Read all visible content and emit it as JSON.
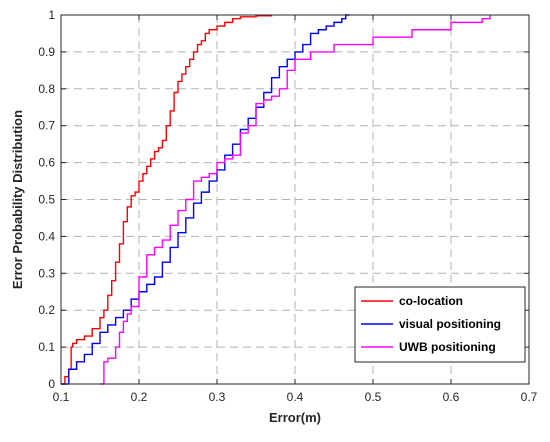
{
  "chart_data": {
    "type": "line",
    "title": "",
    "xlabel": "Error(m)",
    "ylabel": "Error Probability Distribution",
    "xlim": [
      0.1,
      0.7
    ],
    "ylim": [
      0,
      1
    ],
    "xticks": [
      "0.1",
      "0.2",
      "0.3",
      "0.4",
      "0.5",
      "0.6",
      "0.7"
    ],
    "yticks": [
      "0",
      "0.1",
      "0.2",
      "0.3",
      "0.4",
      "0.5",
      "0.6",
      "0.7",
      "0.8",
      "0.9",
      "1"
    ],
    "grid": true,
    "step": true,
    "legend_position": "bottom-right",
    "series": [
      {
        "name": "co-location",
        "color": "#ff0000",
        "x": [
          0.1,
          0.105,
          0.11,
          0.113,
          0.115,
          0.12,
          0.13,
          0.14,
          0.15,
          0.155,
          0.16,
          0.165,
          0.17,
          0.175,
          0.18,
          0.185,
          0.19,
          0.195,
          0.2,
          0.205,
          0.21,
          0.215,
          0.22,
          0.225,
          0.23,
          0.235,
          0.24,
          0.245,
          0.25,
          0.255,
          0.26,
          0.265,
          0.27,
          0.275,
          0.28,
          0.285,
          0.29,
          0.3,
          0.31,
          0.32,
          0.33,
          0.35,
          0.37
        ],
        "y": [
          0.0,
          0.02,
          0.04,
          0.1,
          0.11,
          0.12,
          0.13,
          0.15,
          0.18,
          0.2,
          0.24,
          0.28,
          0.33,
          0.38,
          0.44,
          0.48,
          0.51,
          0.52,
          0.55,
          0.57,
          0.59,
          0.61,
          0.63,
          0.64,
          0.66,
          0.7,
          0.74,
          0.79,
          0.82,
          0.84,
          0.86,
          0.88,
          0.9,
          0.92,
          0.93,
          0.95,
          0.96,
          0.97,
          0.98,
          0.99,
          0.995,
          0.998,
          1.0
        ]
      },
      {
        "name": "visual positioning",
        "color": "#0000ff",
        "x": [
          0.1,
          0.11,
          0.12,
          0.13,
          0.14,
          0.15,
          0.16,
          0.17,
          0.18,
          0.19,
          0.2,
          0.21,
          0.22,
          0.23,
          0.24,
          0.25,
          0.26,
          0.27,
          0.28,
          0.29,
          0.3,
          0.31,
          0.32,
          0.33,
          0.34,
          0.35,
          0.36,
          0.37,
          0.38,
          0.39,
          0.4,
          0.41,
          0.42,
          0.43,
          0.44,
          0.45,
          0.46,
          0.465,
          0.47
        ],
        "y": [
          0.0,
          0.04,
          0.06,
          0.08,
          0.11,
          0.14,
          0.16,
          0.18,
          0.2,
          0.23,
          0.25,
          0.27,
          0.29,
          0.33,
          0.37,
          0.41,
          0.45,
          0.49,
          0.52,
          0.55,
          0.58,
          0.62,
          0.65,
          0.69,
          0.72,
          0.75,
          0.79,
          0.83,
          0.86,
          0.88,
          0.9,
          0.92,
          0.95,
          0.96,
          0.97,
          0.98,
          0.99,
          1.0,
          1.0
        ]
      },
      {
        "name": "UWB positioning",
        "color": "#ff00ff",
        "x": [
          0.15,
          0.155,
          0.16,
          0.17,
          0.175,
          0.18,
          0.185,
          0.19,
          0.2,
          0.21,
          0.22,
          0.23,
          0.24,
          0.25,
          0.26,
          0.27,
          0.28,
          0.29,
          0.3,
          0.31,
          0.32,
          0.33,
          0.34,
          0.35,
          0.36,
          0.37,
          0.38,
          0.39,
          0.4,
          0.42,
          0.45,
          0.5,
          0.55,
          0.6,
          0.64,
          0.65
        ],
        "y": [
          0.0,
          0.06,
          0.07,
          0.1,
          0.14,
          0.17,
          0.19,
          0.21,
          0.29,
          0.35,
          0.37,
          0.39,
          0.43,
          0.47,
          0.5,
          0.55,
          0.56,
          0.57,
          0.6,
          0.61,
          0.62,
          0.68,
          0.7,
          0.76,
          0.77,
          0.78,
          0.8,
          0.85,
          0.88,
          0.9,
          0.92,
          0.94,
          0.96,
          0.98,
          0.99,
          1.0
        ]
      }
    ]
  }
}
